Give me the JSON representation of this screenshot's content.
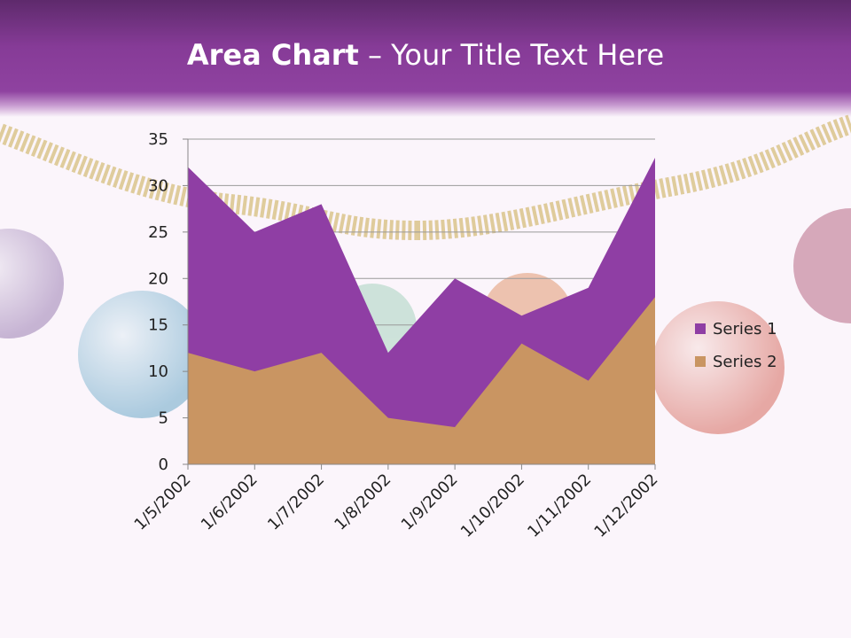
{
  "header": {
    "title_bold": "Area Chart",
    "title_rest": " – Your Title Text Here"
  },
  "decor": {
    "ornament_colors": [
      "#9c7fb4",
      "#6aa8c8",
      "#a9d3c0",
      "#e39a72",
      "#d66a5e",
      "#b86a86"
    ],
    "garland_color": "#c9a94e"
  },
  "chart_data": {
    "type": "area",
    "stacked": true,
    "categories": [
      "1/5/2002",
      "1/6/2002",
      "1/7/2002",
      "1/8/2002",
      "1/9/2002",
      "1/10/2002",
      "1/11/2002",
      "1/12/2002"
    ],
    "series": [
      {
        "name": "Series 1",
        "values": [
          20,
          15,
          16,
          7,
          16,
          3,
          10,
          15
        ],
        "color": "#8f3ea4"
      },
      {
        "name": "Series 2",
        "values": [
          12,
          10,
          12,
          5,
          4,
          13,
          9,
          18
        ],
        "color": "#c99562"
      }
    ],
    "ylim": [
      0,
      35
    ],
    "yticks": [
      0,
      5,
      10,
      15,
      20,
      25,
      30,
      35
    ],
    "grid": true,
    "legend": "right",
    "title": "",
    "xlabel": "",
    "ylabel": ""
  }
}
